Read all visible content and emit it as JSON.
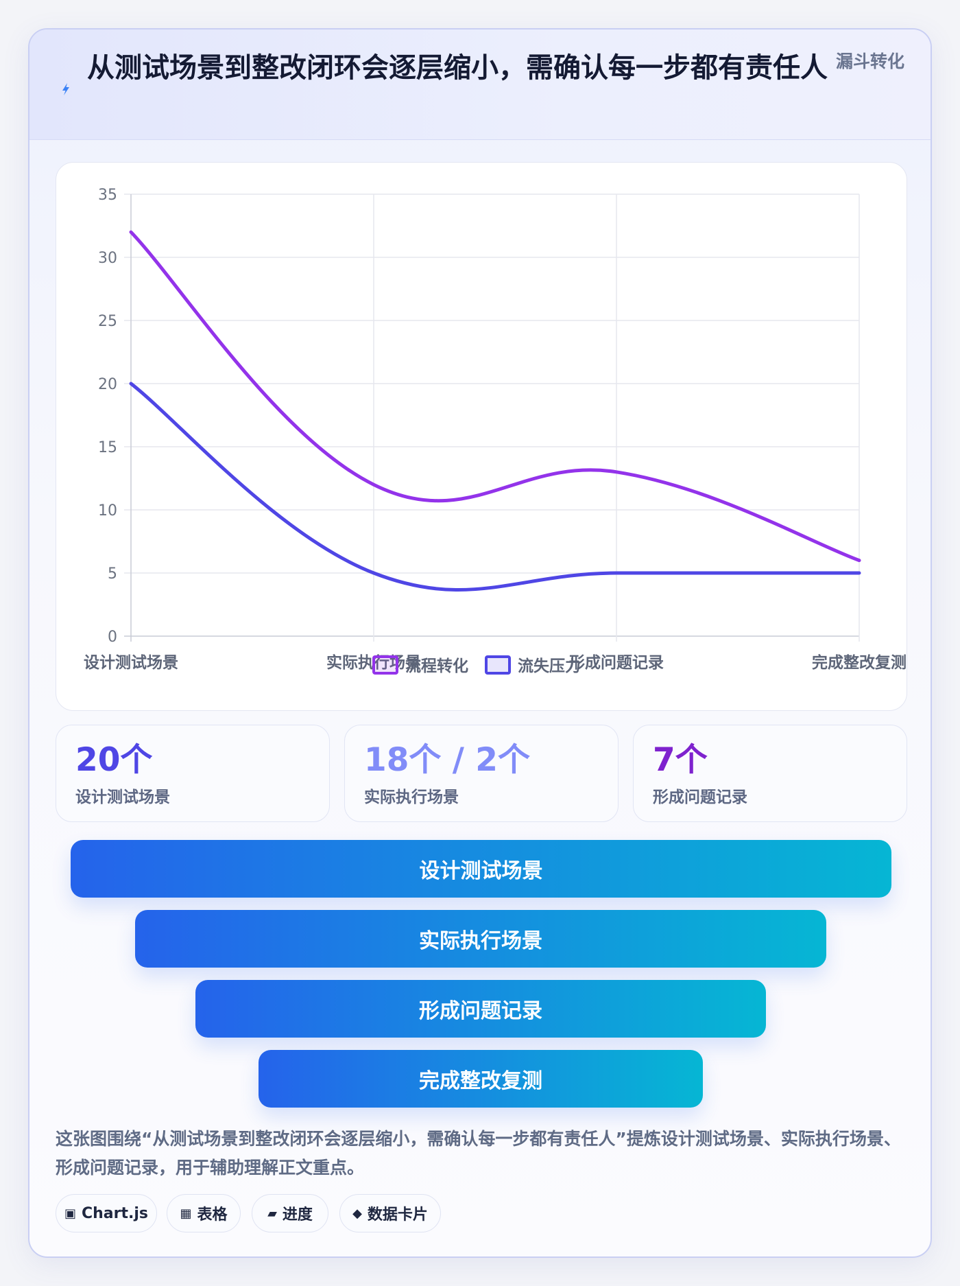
{
  "header": {
    "title": "从测试场景到整改闭环会逐层缩小，需确认每一步都有责任人",
    "tag": "漏斗转化",
    "icon": "lightning-icon"
  },
  "chart_data": {
    "type": "line",
    "categories": [
      "设计测试场景",
      "实际执行场景",
      "形成问题记录",
      "完成整改复测"
    ],
    "series": [
      {
        "name": "流程转化",
        "values": [
          32,
          12,
          13,
          6
        ],
        "color": "#9333ea"
      },
      {
        "name": "流失压力",
        "values": [
          20,
          5,
          5,
          5
        ],
        "color": "#4f46e5"
      }
    ],
    "ylim": [
      0,
      35
    ],
    "yticks": [
      0,
      5,
      10,
      15,
      20,
      25,
      30,
      35
    ],
    "grid": true,
    "legend": "bottom"
  },
  "stats": [
    {
      "value": "20个",
      "label": "设计测试场景",
      "color": "#4f46e5"
    },
    {
      "value": "18个 / 2个",
      "label": "实际执行场景",
      "color": "#818cf8"
    },
    {
      "value": "7个",
      "label": "形成问题记录",
      "color": "#7e22ce"
    }
  ],
  "funnel": [
    {
      "label": "设计测试场景"
    },
    {
      "label": "实际执行场景"
    },
    {
      "label": "形成问题记录"
    },
    {
      "label": "完成整改复测"
    }
  ],
  "description": "这张图围绕“从测试场景到整改闭环会逐层缩小，需确认每一步都有责任人”提炼设计测试场景、实际执行场景、形成问题记录，用于辅助理解正文重点。",
  "chips": [
    {
      "icon": "▣",
      "label": "Chart.js"
    },
    {
      "icon": "▦",
      "label": "表格"
    },
    {
      "icon": "▰",
      "label": "进度"
    },
    {
      "icon": "◆",
      "label": "数据卡片"
    }
  ]
}
